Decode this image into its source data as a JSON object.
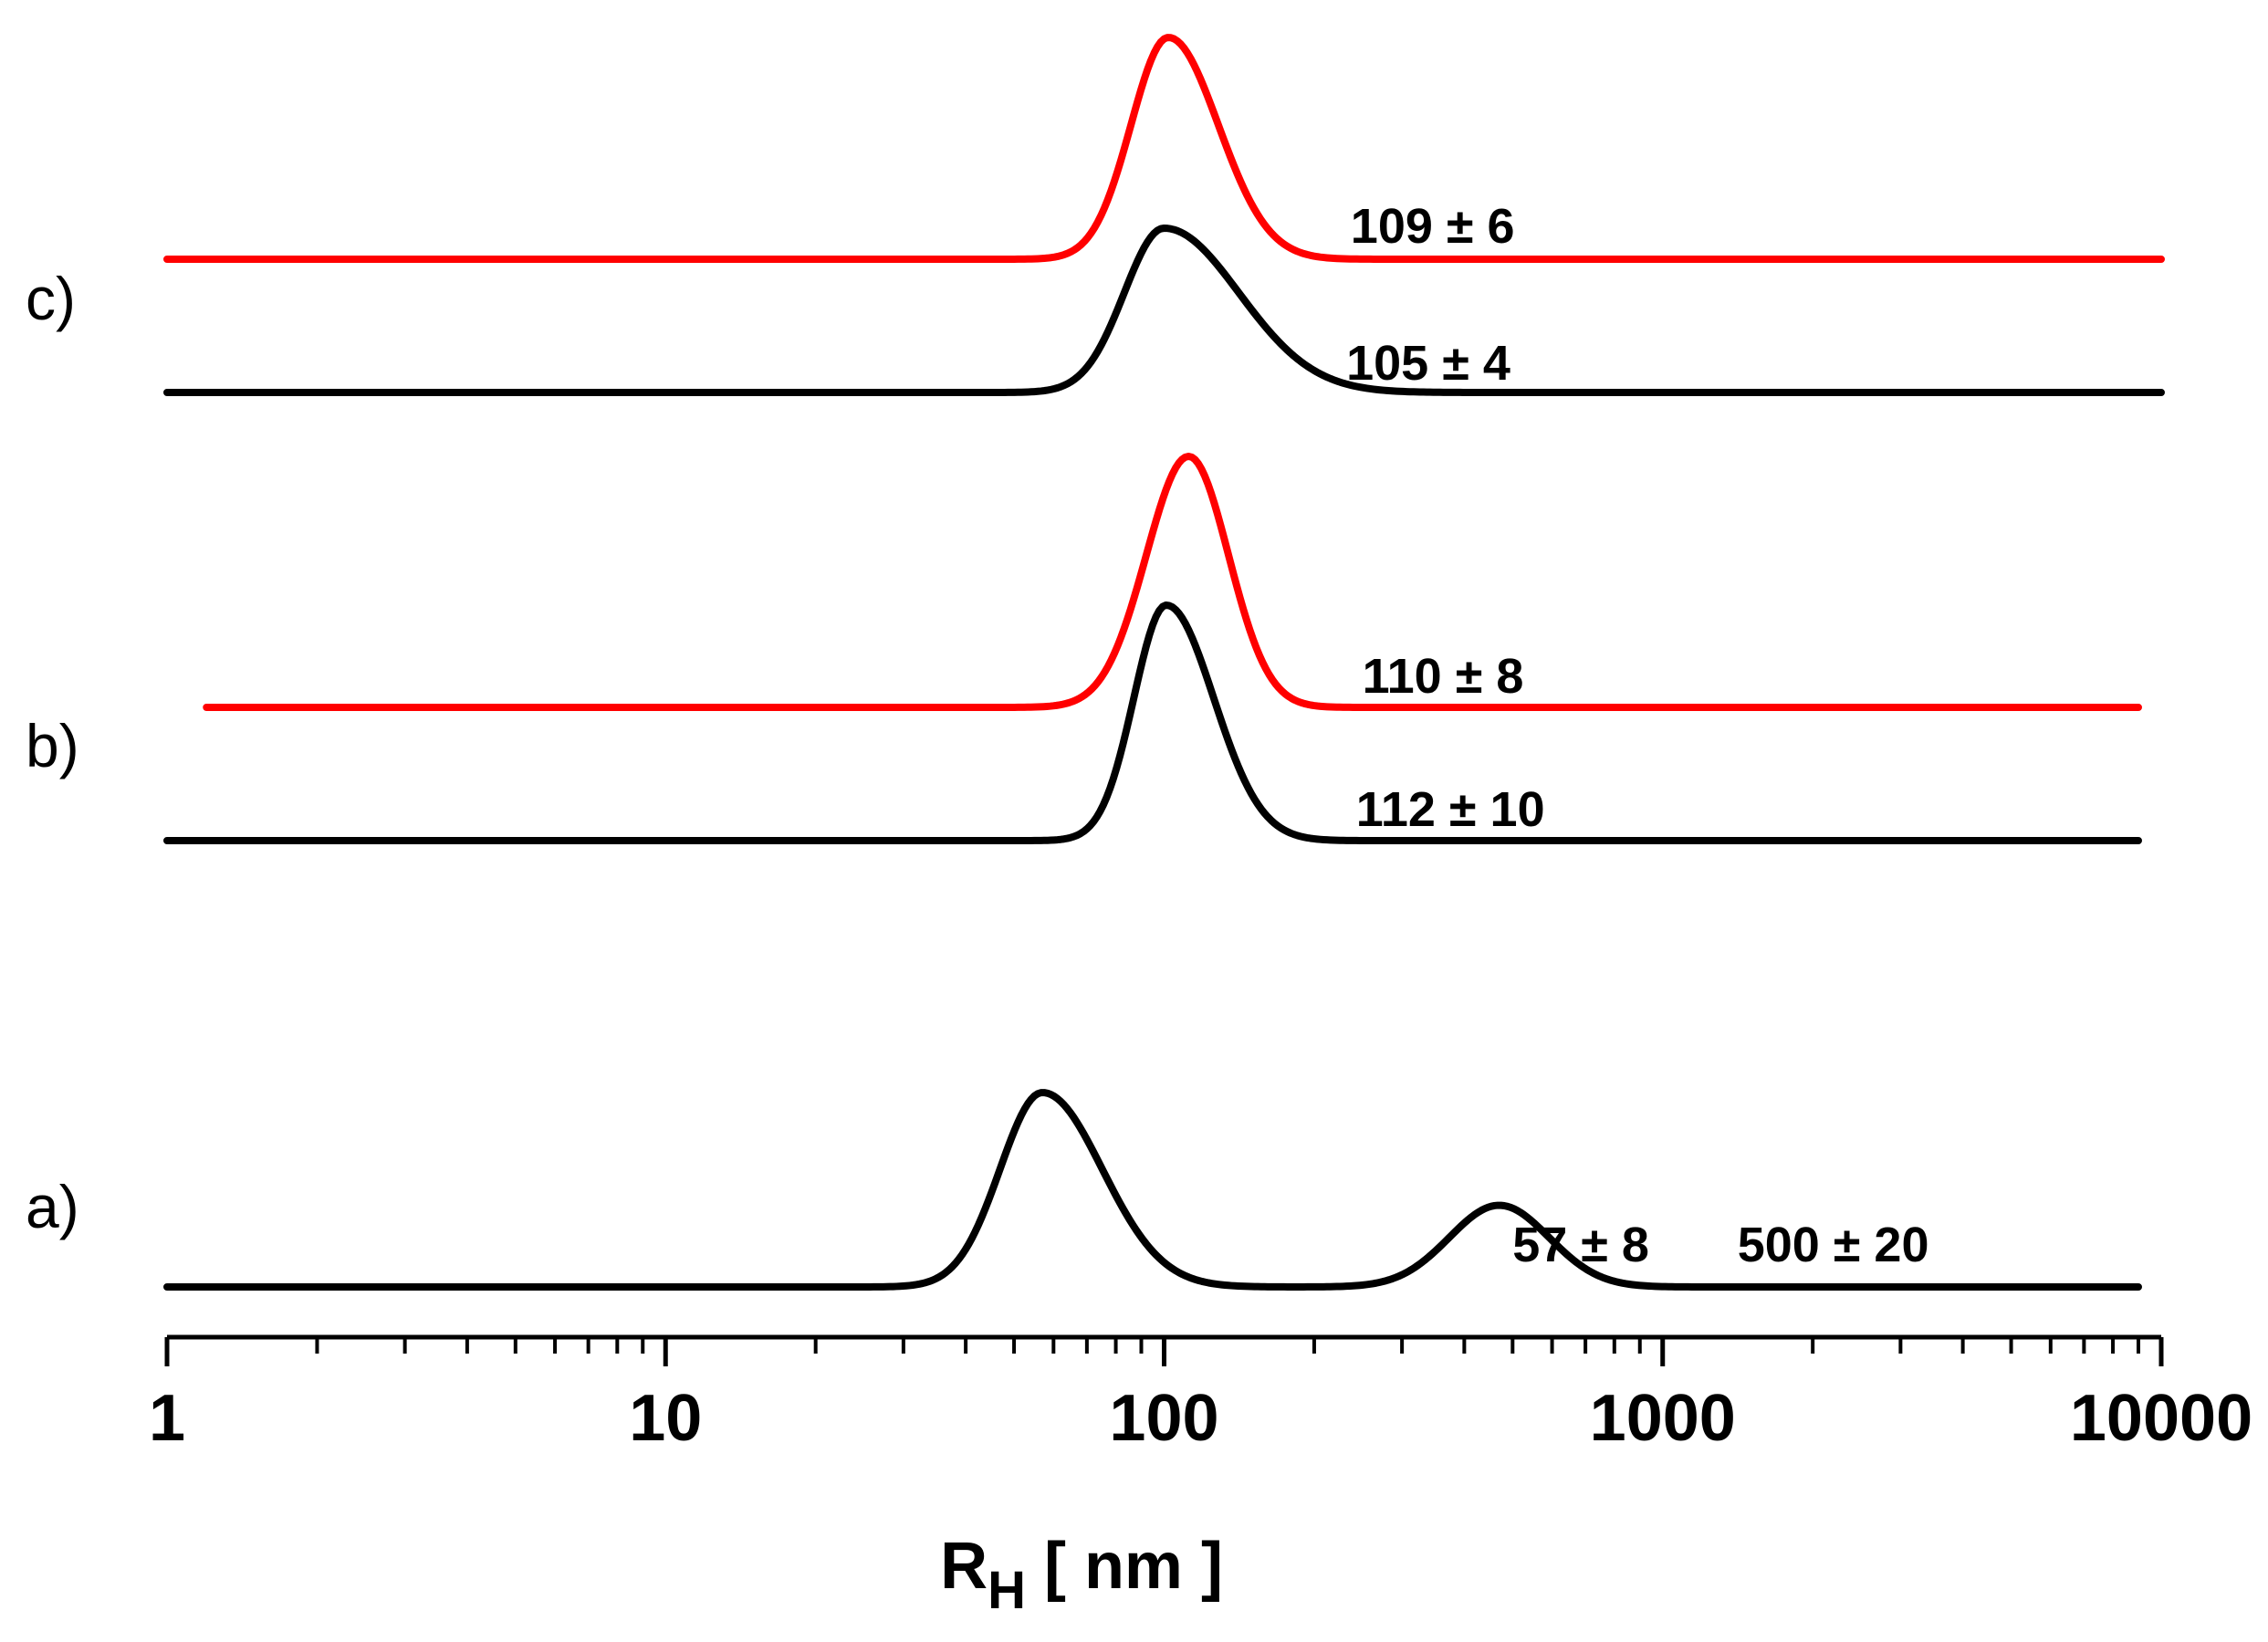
{
  "chart_data": {
    "type": "line",
    "x_scale": "log",
    "xlim": [
      1,
      10000
    ],
    "grid": false,
    "xaxis": {
      "title_main": "R",
      "title_sub": "H",
      "title_unit": " [ nm ]",
      "major_ticks": [
        1,
        10,
        100,
        1000,
        10000
      ],
      "major_tick_labels": [
        "1",
        "10",
        "100",
        "1000",
        "10000"
      ]
    },
    "panels": [
      {
        "label": "a)",
        "series": [
          {
            "color": "#000000",
            "x_range": [
              1,
              9000
            ],
            "peaks": [
              {
                "center": 57,
                "height": 1.0,
                "sigma_left": 0.085,
                "sigma_right": 0.12,
                "annotation": "57 ± 8"
              },
              {
                "center": 470,
                "height": 0.42,
                "sigma_left": 0.1,
                "sigma_right": 0.1,
                "annotation": "500 ± 20"
              }
            ]
          }
        ]
      },
      {
        "label": "b)",
        "series": [
          {
            "color": "#000000",
            "x_range": [
              1,
              9000
            ],
            "peaks": [
              {
                "center": 101,
                "height": 1.0,
                "sigma_left": 0.065,
                "sigma_right": 0.095,
                "annotation": "112 ± 10"
              }
            ]
          },
          {
            "color": "#ff0000",
            "x_range": [
              1.2,
              9000
            ],
            "peaks": [
              {
                "center": 112,
                "height": 1.0,
                "sigma_left": 0.085,
                "sigma_right": 0.08,
                "annotation": "110 ± 8"
              }
            ]
          }
        ]
      },
      {
        "label": "c)",
        "series": [
          {
            "color": "#000000",
            "x_range": [
              1,
              10000
            ],
            "peaks": [
              {
                "center": 100,
                "height": 1.0,
                "sigma_left": 0.08,
                "sigma_right": 0.15,
                "annotation": "105 ± 4"
              }
            ]
          },
          {
            "color": "#ff0000",
            "x_range": [
              1,
              10000
            ],
            "peaks": [
              {
                "center": 102,
                "height": 1.0,
                "sigma_left": 0.075,
                "sigma_right": 0.1,
                "annotation": "109 ± 6"
              }
            ]
          }
        ]
      }
    ]
  }
}
